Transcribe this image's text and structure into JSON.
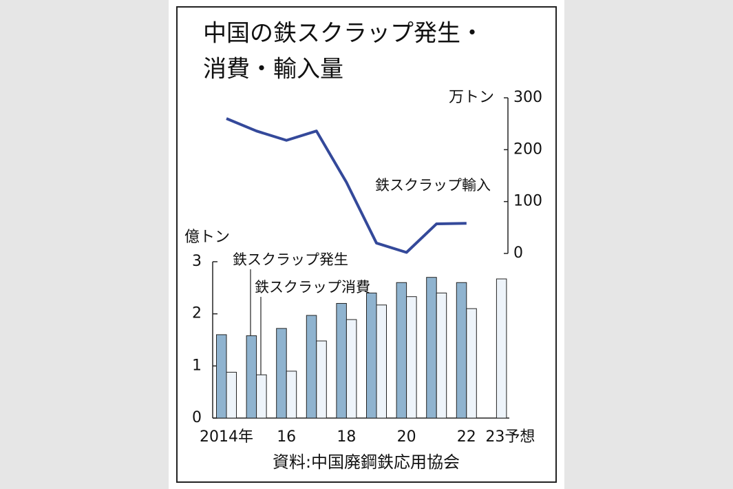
{
  "chart_data": {
    "type": "bar",
    "title": [
      "中国の鉄スクラップ発生・",
      "消費・輸入量"
    ],
    "ylabel": "億トン",
    "y2label": "万トン",
    "source": "資料:中国廃鋼鉄応用協会",
    "categories": [
      "2014年",
      null,
      "16",
      null,
      "18",
      null,
      "20",
      null,
      "22",
      "23予想"
    ],
    "series": [
      {
        "name": "鉄スクラップ発生",
        "type": "bar",
        "color": "#8fb3cf",
        "values": [
          1.6,
          1.58,
          1.72,
          1.97,
          2.2,
          2.4,
          2.6,
          2.7,
          2.6,
          null
        ]
      },
      {
        "name": "鉄スクラップ消費",
        "type": "bar",
        "color": "#eef4fa",
        "values": [
          0.88,
          0.83,
          0.9,
          1.48,
          1.89,
          2.17,
          2.33,
          2.4,
          2.1,
          2.67
        ]
      },
      {
        "name": "鉄スクラップ輸入",
        "type": "line",
        "axis": "y2",
        "color": "#34499a",
        "values": [
          260,
          236,
          218,
          236,
          137,
          20,
          2,
          57,
          58,
          null
        ]
      }
    ],
    "ylim": [
      0,
      3
    ],
    "yticks": [
      0,
      1,
      2,
      3
    ],
    "y2lim": [
      0,
      300
    ],
    "y2ticks": [
      0,
      100,
      200,
      300
    ],
    "grid": false
  }
}
